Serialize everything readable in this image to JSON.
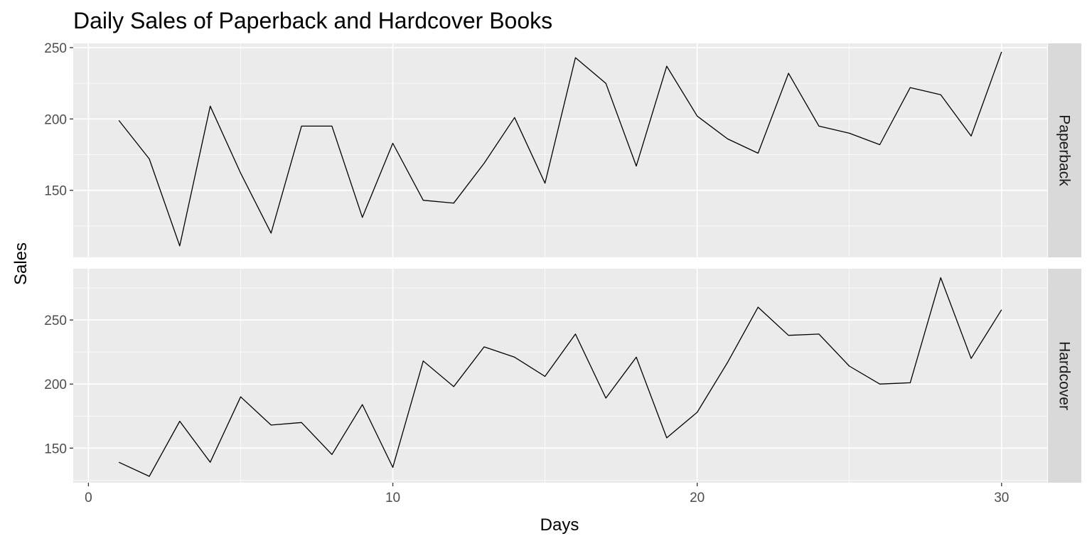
{
  "chart_data": {
    "type": "line",
    "title": "Daily Sales of Paperback and Hardcover Books",
    "xlabel": "Days",
    "ylabel": "Sales",
    "facet_layout": "vertical, strip labels on right",
    "grid": true,
    "colors": {
      "panel_bg": "#ebebeb",
      "grid_major": "#ffffff",
      "strip_bg": "#d9d9d9",
      "line": "#000000",
      "tick_text": "#4d4d4d"
    },
    "x": [
      1,
      2,
      3,
      4,
      5,
      6,
      7,
      8,
      9,
      10,
      11,
      12,
      13,
      14,
      15,
      16,
      17,
      18,
      19,
      20,
      21,
      22,
      23,
      24,
      25,
      26,
      27,
      28,
      29,
      30
    ],
    "xlim": [
      -0.5,
      31.5
    ],
    "x_ticks": [
      0,
      10,
      20,
      30
    ],
    "x_tick_labels": [
      "0",
      "10",
      "20",
      "30"
    ],
    "series": [
      {
        "name": "Paperback",
        "ylim": [
          103,
          253
        ],
        "y_ticks": [
          150,
          200,
          250
        ],
        "y_tick_labels": [
          "150",
          "200",
          "250"
        ],
        "values": [
          199,
          172,
          111,
          209,
          162,
          120,
          195,
          195,
          131,
          183,
          143,
          141,
          169,
          201,
          155,
          243,
          225,
          167,
          237,
          202,
          186,
          176,
          232,
          195,
          190,
          182,
          222,
          217,
          188,
          247
        ]
      },
      {
        "name": "Hardcover",
        "ylim": [
          123,
          290
        ],
        "y_ticks": [
          150,
          200,
          250
        ],
        "y_tick_labels": [
          "150",
          "200",
          "250"
        ],
        "values": [
          139,
          128,
          171,
          139,
          190,
          168,
          170,
          145,
          184,
          135,
          218,
          198,
          229,
          221,
          206,
          239,
          189,
          221,
          158,
          178,
          217,
          260,
          238,
          239,
          214,
          200,
          201,
          283,
          220,
          258
        ]
      }
    ]
  }
}
